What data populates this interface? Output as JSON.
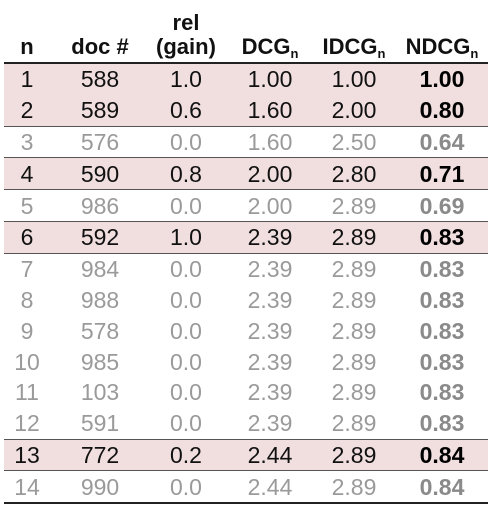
{
  "headers": {
    "n": "n",
    "doc": "doc #",
    "rel_line1": "rel",
    "rel_line2": "(gain)",
    "dcg": "DCG",
    "dcg_sub": "n",
    "idcg": "IDCG",
    "idcg_sub": "n",
    "ndcg": "NDCG",
    "ndcg_sub": "n"
  },
  "colors": {
    "relevant_row_bg": "#f1dfe0",
    "nonrelevant_text": "#9a9a9a"
  },
  "rows": [
    {
      "n": "1",
      "doc": "588",
      "rel": "1.0",
      "dcg": "1.00",
      "idcg": "1.00",
      "ndcg": "1.00",
      "relevant": true
    },
    {
      "n": "2",
      "doc": "589",
      "rel": "0.6",
      "dcg": "1.60",
      "idcg": "2.00",
      "ndcg": "0.80",
      "relevant": true
    },
    {
      "n": "3",
      "doc": "576",
      "rel": "0.0",
      "dcg": "1.60",
      "idcg": "2.50",
      "ndcg": "0.64",
      "relevant": false
    },
    {
      "n": "4",
      "doc": "590",
      "rel": "0.8",
      "dcg": "2.00",
      "idcg": "2.80",
      "ndcg": "0.71",
      "relevant": true
    },
    {
      "n": "5",
      "doc": "986",
      "rel": "0.0",
      "dcg": "2.00",
      "idcg": "2.89",
      "ndcg": "0.69",
      "relevant": false
    },
    {
      "n": "6",
      "doc": "592",
      "rel": "1.0",
      "dcg": "2.39",
      "idcg": "2.89",
      "ndcg": "0.83",
      "relevant": true
    },
    {
      "n": "7",
      "doc": "984",
      "rel": "0.0",
      "dcg": "2.39",
      "idcg": "2.89",
      "ndcg": "0.83",
      "relevant": false
    },
    {
      "n": "8",
      "doc": "988",
      "rel": "0.0",
      "dcg": "2.39",
      "idcg": "2.89",
      "ndcg": "0.83",
      "relevant": false
    },
    {
      "n": "9",
      "doc": "578",
      "rel": "0.0",
      "dcg": "2.39",
      "idcg": "2.89",
      "ndcg": "0.83",
      "relevant": false
    },
    {
      "n": "10",
      "doc": "985",
      "rel": "0.0",
      "dcg": "2.39",
      "idcg": "2.89",
      "ndcg": "0.83",
      "relevant": false
    },
    {
      "n": "11",
      "doc": "103",
      "rel": "0.0",
      "dcg": "2.39",
      "idcg": "2.89",
      "ndcg": "0.83",
      "relevant": false
    },
    {
      "n": "12",
      "doc": "591",
      "rel": "0.0",
      "dcg": "2.39",
      "idcg": "2.89",
      "ndcg": "0.83",
      "relevant": false
    },
    {
      "n": "13",
      "doc": "772",
      "rel": "0.2",
      "dcg": "2.44",
      "idcg": "2.89",
      "ndcg": "0.84",
      "relevant": true
    },
    {
      "n": "14",
      "doc": "990",
      "rel": "0.0",
      "dcg": "2.44",
      "idcg": "2.89",
      "ndcg": "0.84",
      "relevant": false
    }
  ]
}
